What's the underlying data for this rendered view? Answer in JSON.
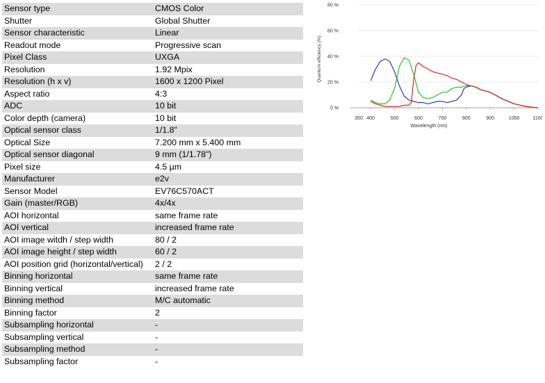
{
  "specs": [
    {
      "label": "Sensor type",
      "value": "CMOS Color"
    },
    {
      "label": "Shutter",
      "value": "Global Shutter"
    },
    {
      "label": "Sensor characteristic",
      "value": "Linear"
    },
    {
      "label": "Readout mode",
      "value": "Progressive scan"
    },
    {
      "label": "Pixel Class",
      "value": "UXGA"
    },
    {
      "label": "Resolution",
      "value": "1.92 Mpix"
    },
    {
      "label": "Resolution (h x v)",
      "value": "1600 x 1200 Pixel"
    },
    {
      "label": "Aspect ratio",
      "value": "4:3"
    },
    {
      "label": "ADC",
      "value": "10 bit"
    },
    {
      "label": "Color depth (camera)",
      "value": "10 bit"
    },
    {
      "label": "Optical sensor class",
      "value": "1/1.8\""
    },
    {
      "label": "Optical Size",
      "value": "7.200 mm x 5.400 mm"
    },
    {
      "label": "Optical sensor diagonal",
      "value": "9 mm (1/1.78\")"
    },
    {
      "label": "Pixel size",
      "value": "4.5 µm"
    },
    {
      "label": "Manufacturer",
      "value": "e2v"
    },
    {
      "label": "Sensor Model",
      "value": "EV76C570ACT"
    },
    {
      "label": "Gain (master/RGB)",
      "value": "4x/4x"
    },
    {
      "label": "AOI horizontal",
      "value": "same frame rate"
    },
    {
      "label": "AOI vertical",
      "value": "increased frame rate"
    },
    {
      "label": "AOI image witdh / step width",
      "value": "80 / 2"
    },
    {
      "label": "AOI image height / step width",
      "value": "60 / 2"
    },
    {
      "label": "AOI position grid (horizontal/vertical)",
      "value": "2 / 2"
    },
    {
      "label": "Binning horizontal",
      "value": "same frame rate"
    },
    {
      "label": "Binning vertical",
      "value": "increased frame rate"
    },
    {
      "label": "Binning method",
      "value": "M/C automatic"
    },
    {
      "label": "Binning factor",
      "value": "2"
    },
    {
      "label": "Subsampling horizontal",
      "value": "-"
    },
    {
      "label": "Subsampling vertical",
      "value": "-"
    },
    {
      "label": "Subsampling method",
      "value": "-"
    },
    {
      "label": "Subsampling factor",
      "value": "-"
    }
  ],
  "chart_data": {
    "type": "line",
    "title": "",
    "xlabel": "Wavelength (nm)",
    "ylabel": "Quantum efficiency (%)",
    "xlim": [
      350,
      1100
    ],
    "ylim": [
      0,
      80
    ],
    "x_ticks": [
      350,
      400,
      500,
      600,
      700,
      800,
      900,
      1000,
      1100
    ],
    "y_ticks": [
      0,
      20,
      40,
      60,
      80
    ],
    "y_tick_labels": [
      "0 %",
      "20 %",
      "40 %",
      "60 %",
      "80 %"
    ],
    "grid": true,
    "series": [
      {
        "color": "#2020c0",
        "points": [
          [
            400,
            21
          ],
          [
            420,
            30
          ],
          [
            440,
            36
          ],
          [
            460,
            38
          ],
          [
            480,
            36
          ],
          [
            500,
            28
          ],
          [
            520,
            17
          ],
          [
            540,
            9
          ],
          [
            560,
            6
          ],
          [
            580,
            5
          ],
          [
            600,
            4
          ],
          [
            620,
            4
          ],
          [
            640,
            3
          ],
          [
            660,
            4
          ],
          [
            680,
            5
          ],
          [
            700,
            5
          ],
          [
            720,
            4
          ],
          [
            740,
            5
          ],
          [
            760,
            6
          ],
          [
            780,
            10
          ],
          [
            790,
            15
          ],
          [
            800,
            16
          ],
          [
            820,
            17
          ],
          [
            840,
            16
          ],
          [
            860,
            14
          ],
          [
            880,
            13
          ],
          [
            900,
            12
          ],
          [
            920,
            10
          ],
          [
            950,
            7
          ],
          [
            1000,
            3
          ],
          [
            1050,
            1
          ],
          [
            1100,
            0
          ]
        ]
      },
      {
        "color": "#10c010",
        "points": [
          [
            400,
            6
          ],
          [
            420,
            4
          ],
          [
            440,
            3
          ],
          [
            460,
            3
          ],
          [
            480,
            6
          ],
          [
            500,
            15
          ],
          [
            520,
            32
          ],
          [
            540,
            39
          ],
          [
            560,
            37
          ],
          [
            580,
            26
          ],
          [
            600,
            12
          ],
          [
            620,
            8
          ],
          [
            640,
            7
          ],
          [
            660,
            8
          ],
          [
            680,
            10
          ],
          [
            700,
            12
          ],
          [
            720,
            12
          ],
          [
            740,
            15
          ],
          [
            760,
            16
          ],
          [
            780,
            16
          ],
          [
            800,
            17
          ],
          [
            820,
            17
          ],
          [
            840,
            16
          ],
          [
            860,
            14
          ],
          [
            880,
            13
          ],
          [
            900,
            12
          ],
          [
            920,
            10
          ],
          [
            950,
            7
          ],
          [
            1000,
            3
          ],
          [
            1050,
            1
          ],
          [
            1100,
            0
          ]
        ]
      },
      {
        "color": "#e01010",
        "points": [
          [
            400,
            5
          ],
          [
            420,
            3
          ],
          [
            440,
            2
          ],
          [
            460,
            1
          ],
          [
            480,
            1
          ],
          [
            500,
            1
          ],
          [
            520,
            1
          ],
          [
            540,
            2
          ],
          [
            560,
            2
          ],
          [
            570,
            4
          ],
          [
            580,
            22
          ],
          [
            590,
            33
          ],
          [
            600,
            35
          ],
          [
            620,
            32
          ],
          [
            640,
            30
          ],
          [
            660,
            28
          ],
          [
            680,
            27
          ],
          [
            700,
            26
          ],
          [
            720,
            25
          ],
          [
            740,
            23
          ],
          [
            760,
            22
          ],
          [
            780,
            20
          ],
          [
            800,
            18
          ],
          [
            820,
            17
          ],
          [
            840,
            16
          ],
          [
            860,
            14
          ],
          [
            880,
            13
          ],
          [
            900,
            12
          ],
          [
            920,
            10
          ],
          [
            950,
            7
          ],
          [
            1000,
            3
          ],
          [
            1050,
            1
          ],
          [
            1100,
            0
          ]
        ]
      }
    ]
  }
}
